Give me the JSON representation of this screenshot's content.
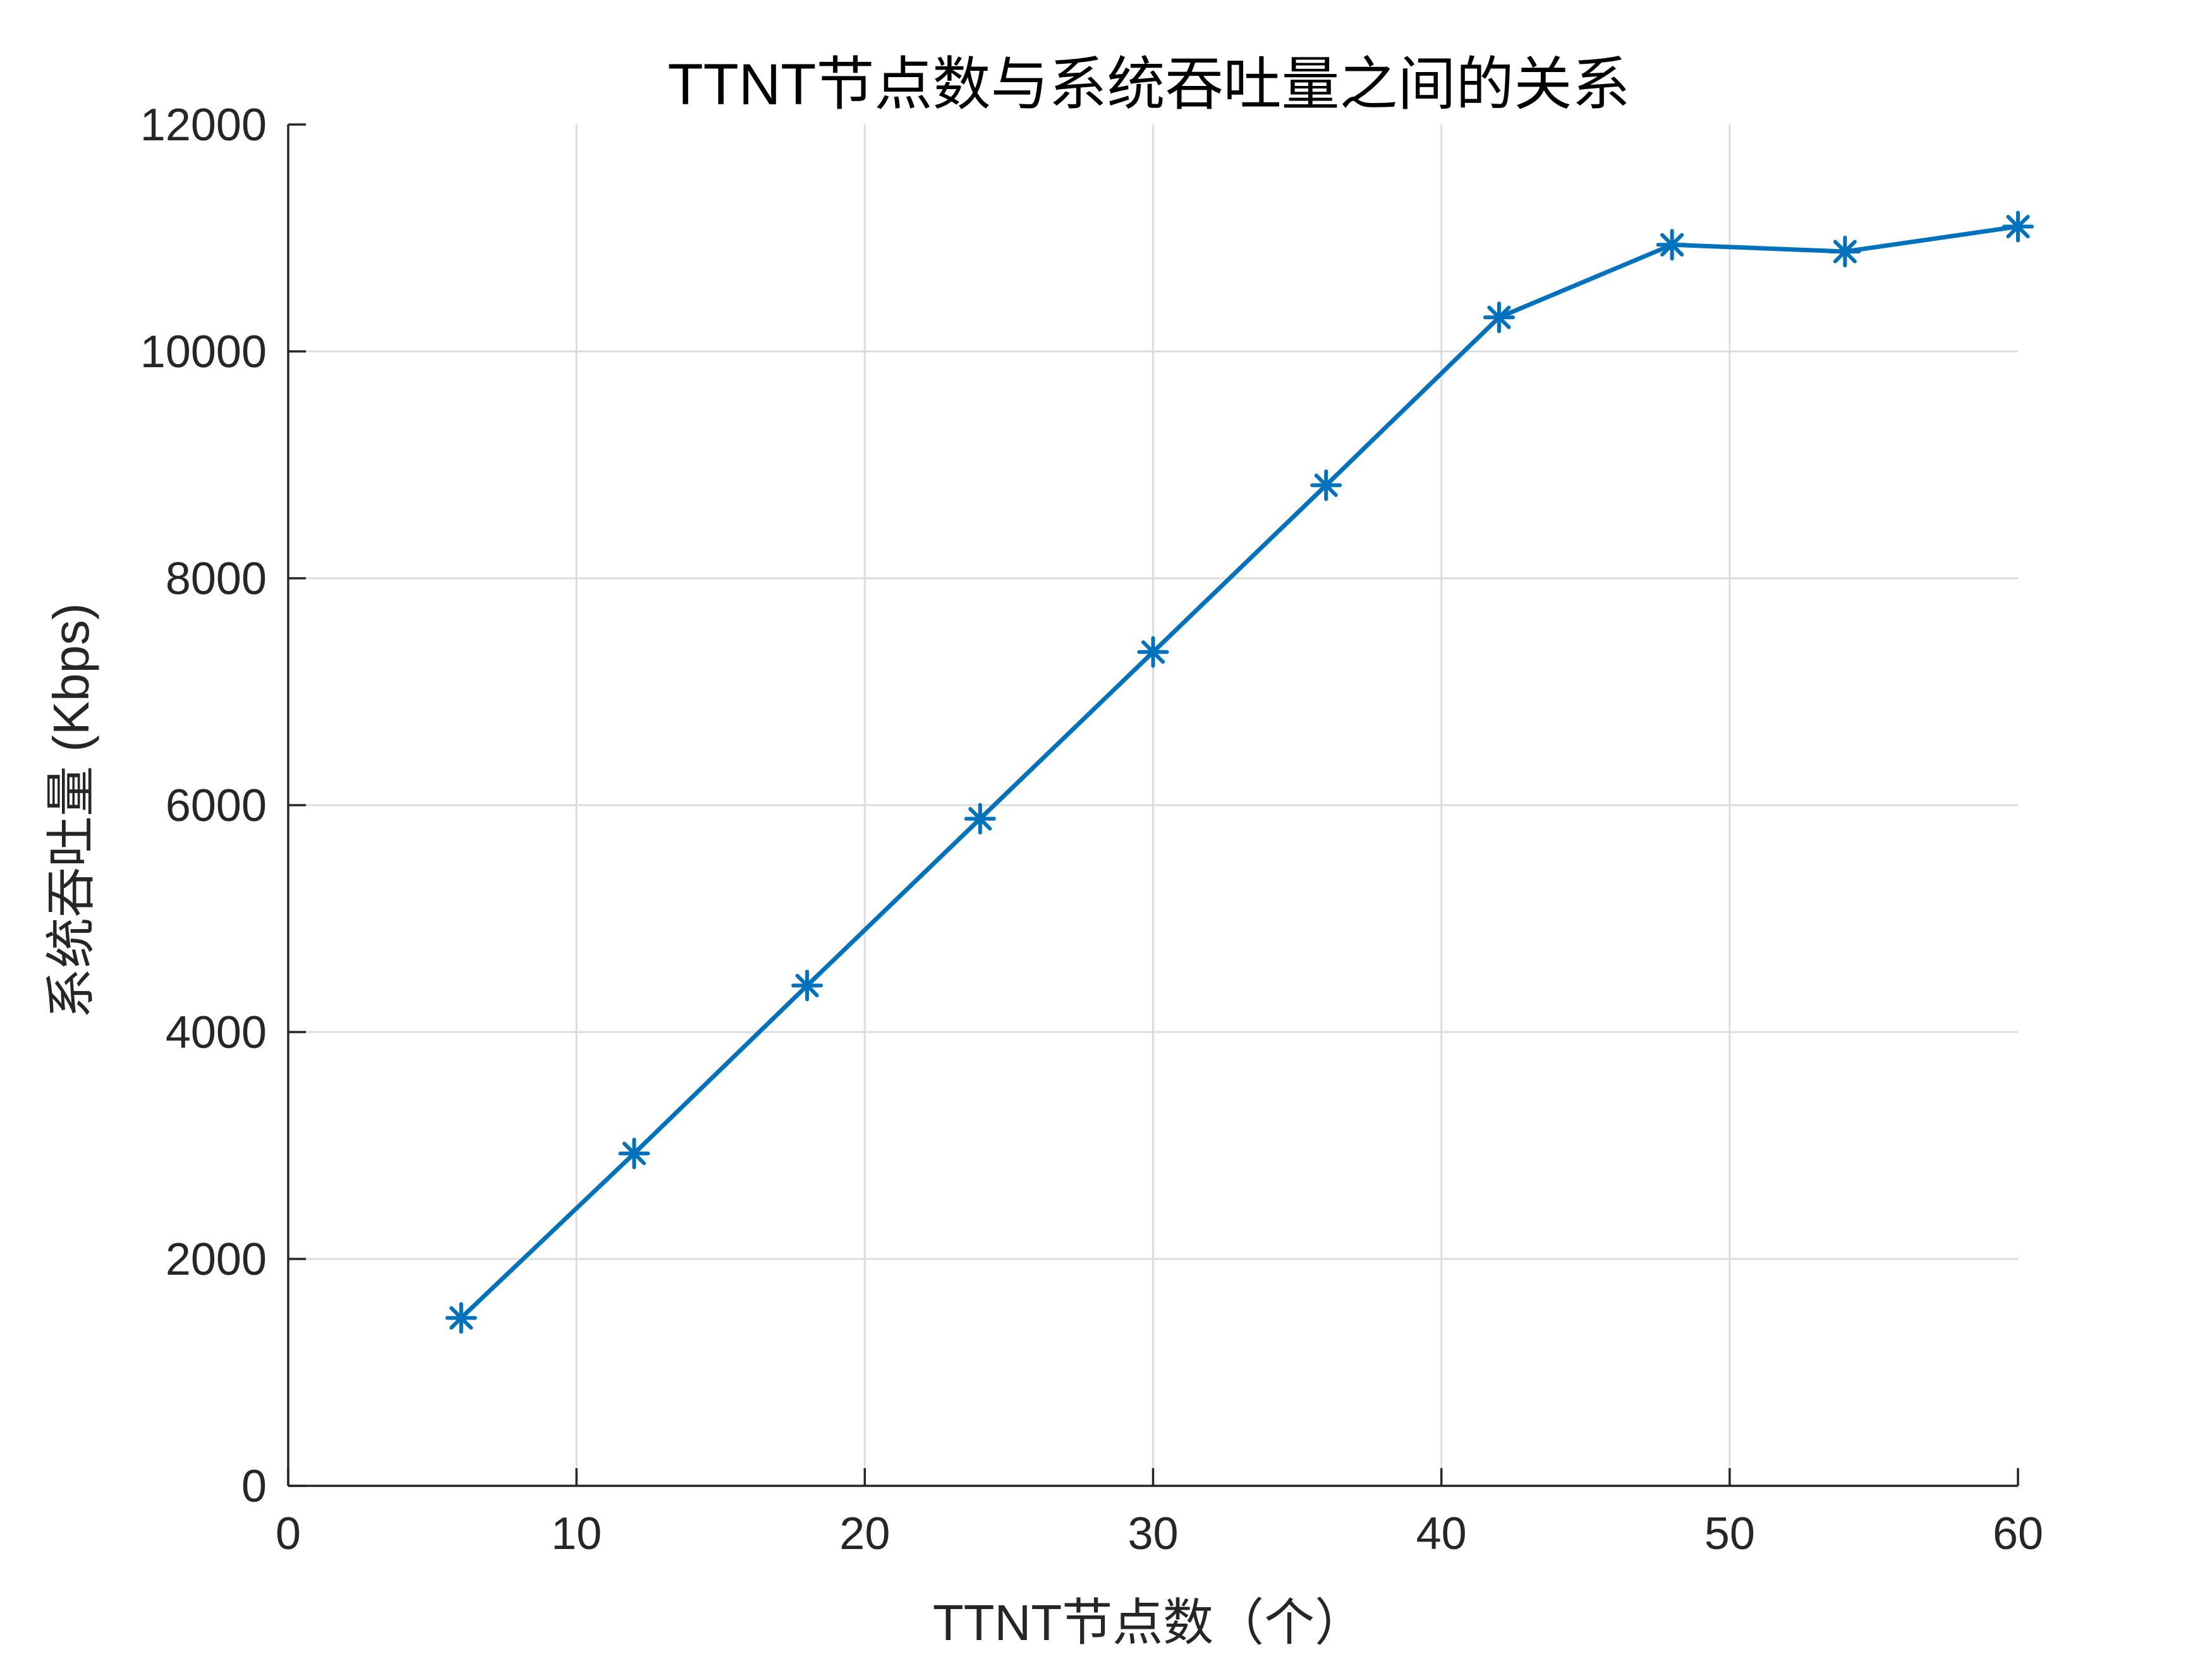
{
  "chart_data": {
    "type": "line",
    "title": "TTNT节点数与系统吞吐量之间的关系",
    "xlabel": "TTNT节点数（个）",
    "ylabel": "系统吞吐量 (Kbps)",
    "xlim": [
      0,
      60
    ],
    "ylim": [
      0,
      12000
    ],
    "xticks": [
      0,
      10,
      20,
      30,
      40,
      50,
      60
    ],
    "yticks": [
      0,
      2000,
      4000,
      6000,
      8000,
      10000,
      12000
    ],
    "grid": true,
    "legend": null,
    "series": [
      {
        "marker": "asterisk",
        "color": "#0072BD",
        "x": [
          6,
          12,
          18,
          24,
          30,
          36,
          42,
          48,
          54,
          60
        ],
        "y": [
          1480,
          2930,
          4410,
          5880,
          7350,
          8820,
          10300,
          10940,
          10880,
          11100
        ]
      }
    ]
  },
  "colors": {
    "series": "#0072BD",
    "grid": "#DCDCDC",
    "axis": "#262626"
  }
}
